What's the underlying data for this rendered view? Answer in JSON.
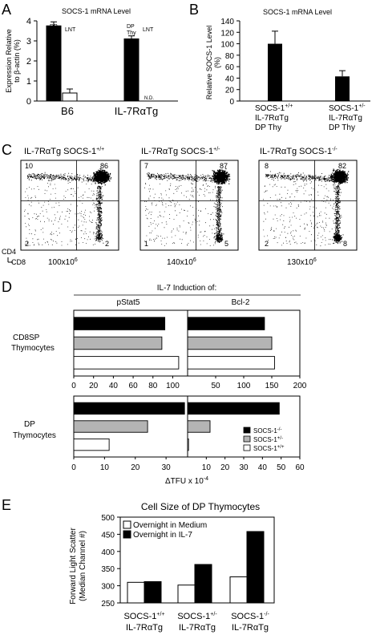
{
  "panels": {
    "A": {
      "letter": "A",
      "title": "SOCS-1 mRNA Level",
      "ylabel_lines": [
        "Expression Relative",
        "to β-actin (%)"
      ],
      "yticks": [
        "0",
        "1",
        "2",
        "3",
        "4"
      ],
      "bar_labels": {
        "dp_thy_1": "DP",
        "dp_thy_2": "Thy",
        "lnt": "LNT"
      },
      "nd_label": "N.D.",
      "groups": [
        "B6",
        "IL-7RαTg"
      ]
    },
    "B": {
      "letter": "B",
      "title": "SOCS-1 mRNA Level",
      "ylabel_lines": [
        "Relative SOCS-1 Level",
        "(%)"
      ],
      "yticks": [
        "0",
        "20",
        "40",
        "60",
        "80",
        "100",
        "120",
        "140"
      ],
      "cat1_lines": [
        "SOCS-1",
        "IL-7RαTg",
        "DP Thy"
      ],
      "cat1_sup": "+/+",
      "cat2_lines": [
        "SOCS-1",
        "IL-7RαTg",
        "DP Thy"
      ],
      "cat2_sup": "+/-"
    },
    "C": {
      "letter": "C",
      "plots": [
        {
          "title": "IL-7RαTg SOCS-1",
          "sup": "+/+",
          "q": [
            "10",
            "86",
            "2",
            "2"
          ],
          "count": "100x10",
          "count_sup": "6"
        },
        {
          "title": "IL-7RαTg SOCS-1",
          "sup": "+/-",
          "q": [
            "7",
            "87",
            "1",
            "5"
          ],
          "count": "140x10",
          "count_sup": "6"
        },
        {
          "title": "IL-7RαTg SOCS-1",
          "sup": "-/-",
          "q": [
            "8",
            "82",
            "2",
            "8"
          ],
          "count": "130x10",
          "count_sup": "6"
        }
      ],
      "axis_y": "CD4",
      "axis_x": "CD8"
    },
    "D": {
      "letter": "D",
      "title": "IL-7 Induction of:",
      "col1": "pStat5",
      "col2": "Bcl-2",
      "row1": [
        "CD8SP",
        "Thymocytes"
      ],
      "row2": [
        "DP",
        "Thymocytes"
      ],
      "ticks_top_left": [
        "0",
        "20",
        "40",
        "60",
        "80",
        "100"
      ],
      "ticks_top_right": [
        "50",
        "100",
        "150",
        "200"
      ],
      "ticks_bottom_left": [
        "0",
        "10",
        "20",
        "30"
      ],
      "ticks_bottom_right": [
        "10",
        "20",
        "30",
        "40",
        "50",
        "60"
      ],
      "xlabel": "ΔTFU x 10",
      "xlabel_sup": "-4",
      "legend": [
        {
          "label": "SOCS-1",
          "sup": "-/-",
          "color": "#000000"
        },
        {
          "label": "SOCS-1",
          "sup": "+/-",
          "color": "#b4b4b4"
        },
        {
          "label": "SOCS-1",
          "sup": "+/+",
          "color": "#ffffff"
        }
      ]
    },
    "E": {
      "letter": "E",
      "title": "Cell Size of DP Thymocytes",
      "ylabel_lines": [
        "Forward Light Scatter",
        "(Median Channel #)"
      ],
      "yticks": [
        "250",
        "300",
        "350",
        "400",
        "450",
        "500"
      ],
      "legend": [
        {
          "label": "Overnight in Medium",
          "color": "#ffffff"
        },
        {
          "label": "Overnight in IL-7",
          "color": "#000000"
        }
      ],
      "cats": [
        {
          "l1": "SOCS-1",
          "sup": "+/+",
          "l2": "IL-7RαTg"
        },
        {
          "l1": "SOCS-1",
          "sup": "+/-",
          "l2": "IL-7RαTg"
        },
        {
          "l1": "SOCS-1",
          "sup": "-/-",
          "l2": "IL-7RαTg"
        }
      ]
    }
  },
  "chart_data": [
    {
      "panel": "A",
      "type": "bar",
      "title": "SOCS-1 mRNA Level",
      "ylabel": "Expression Relative to β-actin (%)",
      "ylim": [
        0,
        4
      ],
      "categories": [
        "B6",
        "IL-7RαTg"
      ],
      "series": [
        {
          "name": "DP Thy",
          "values": [
            3.75,
            3.1
          ],
          "errors": [
            0.2,
            0.15
          ]
        },
        {
          "name": "LNT",
          "values": [
            0.4,
            null
          ],
          "errors": [
            0.2,
            null
          ]
        }
      ]
    },
    {
      "panel": "B",
      "type": "bar",
      "title": "SOCS-1 mRNA Level",
      "ylabel": "Relative SOCS-1 Level (%)",
      "ylim": [
        0,
        140
      ],
      "categories": [
        "SOCS-1+/+ IL-7RαTg DP Thy",
        "SOCS-1+/- IL-7RαTg DP Thy"
      ],
      "values": [
        100,
        43
      ],
      "errors": [
        22,
        10
      ]
    },
    {
      "panel": "D",
      "type": "bar",
      "orientation": "horizontal",
      "title": "IL-7 Induction of:",
      "xlabel": "ΔTFU x 10-4",
      "subplots": [
        {
          "row": "CD8SP Thymocytes",
          "col": "pStat5",
          "xlim": [
            0,
            110
          ],
          "series": [
            {
              "name": "SOCS-1-/-",
              "value": 92
            },
            {
              "name": "SOCS-1+/-",
              "value": 89
            },
            {
              "name": "SOCS-1+/+",
              "value": 106
            }
          ]
        },
        {
          "row": "CD8SP Thymocytes",
          "col": "Bcl-2",
          "xlim": [
            0,
            200
          ],
          "series": [
            {
              "name": "SOCS-1-/-",
              "value": 137
            },
            {
              "name": "SOCS-1+/-",
              "value": 150
            },
            {
              "name": "SOCS-1+/+",
              "value": 155
            }
          ]
        },
        {
          "row": "DP Thymocytes",
          "col": "pStat5",
          "xlim": [
            0,
            36
          ],
          "series": [
            {
              "name": "SOCS-1-/-",
              "value": 36
            },
            {
              "name": "SOCS-1+/-",
              "value": 24
            },
            {
              "name": "SOCS-1+/+",
              "value": 11.5
            }
          ]
        },
        {
          "row": "DP Thymocytes",
          "col": "Bcl-2",
          "xlim": [
            0,
            60
          ],
          "series": [
            {
              "name": "SOCS-1-/-",
              "value": 49
            },
            {
              "name": "SOCS-1+/-",
              "value": 12
            },
            {
              "name": "SOCS-1+/+",
              "value": 0.5
            }
          ]
        }
      ]
    },
    {
      "panel": "E",
      "type": "bar",
      "title": "Cell Size of DP Thymocytes",
      "ylabel": "Forward Light Scatter (Median Channel #)",
      "ylim": [
        250,
        500
      ],
      "categories": [
        "SOCS-1+/+ IL-7RαTg",
        "SOCS-1+/- IL-7RαTg",
        "SOCS-1-/- IL-7RαTg"
      ],
      "series": [
        {
          "name": "Overnight in Medium",
          "values": [
            310,
            302,
            326
          ]
        },
        {
          "name": "Overnight in IL-7",
          "values": [
            312,
            362,
            458
          ]
        }
      ]
    }
  ]
}
